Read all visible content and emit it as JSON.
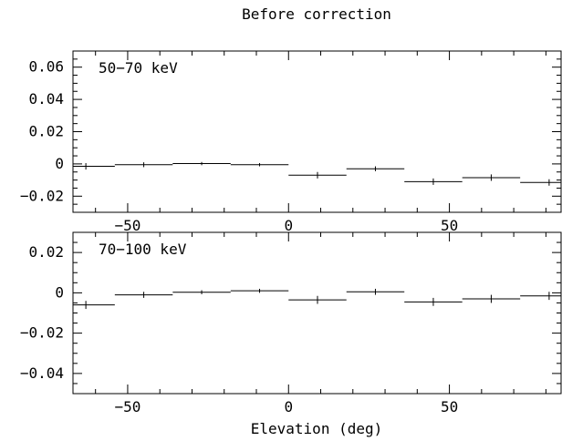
{
  "title": "Before correction",
  "xlabel": "Elevation (deg)",
  "chart_data": [
    {
      "type": "scatter",
      "annotation": "50−70 keV",
      "xlim": [
        -67,
        85
      ],
      "ylim": [
        -0.03,
        0.07
      ],
      "yticks": [
        -0.02,
        0,
        0.02,
        0.04,
        0.06
      ],
      "ytick_labels": [
        "−0.02",
        "0",
        "0.02",
        "0.04",
        "0.06"
      ],
      "xticks": [
        -50,
        0,
        50
      ],
      "xtick_labels": [
        "−50",
        "0",
        "50"
      ],
      "points": [
        {
          "x": -63,
          "xlo": -72,
          "xhi": -54,
          "y": -0.0015,
          "yerr": 0.002
        },
        {
          "x": -45,
          "xlo": -54,
          "xhi": -36,
          "y": -0.0005,
          "yerr": 0.0015
        },
        {
          "x": -27,
          "xlo": -36,
          "xhi": -18,
          "y": 0.0002,
          "yerr": 0.001
        },
        {
          "x": -9,
          "xlo": -18,
          "xhi": 0,
          "y": -0.0005,
          "yerr": 0.001
        },
        {
          "x": 9,
          "xlo": 0,
          "xhi": 18,
          "y": -0.007,
          "yerr": 0.002
        },
        {
          "x": 27,
          "xlo": 18,
          "xhi": 36,
          "y": -0.003,
          "yerr": 0.0015
        },
        {
          "x": 45,
          "xlo": 36,
          "xhi": 54,
          "y": -0.011,
          "yerr": 0.002
        },
        {
          "x": 63,
          "xlo": 54,
          "xhi": 72,
          "y": -0.0085,
          "yerr": 0.002
        },
        {
          "x": 81,
          "xlo": 72,
          "xhi": 90,
          "y": -0.0115,
          "yerr": 0.002
        }
      ]
    },
    {
      "type": "scatter",
      "annotation": "70−100 keV",
      "xlim": [
        -67,
        85
      ],
      "ylim": [
        -0.05,
        0.03
      ],
      "yticks": [
        -0.04,
        -0.02,
        0,
        0.02
      ],
      "ytick_labels": [
        "−0.04",
        "−0.02",
        "0",
        "0.02"
      ],
      "xticks": [
        -50,
        0,
        50
      ],
      "xtick_labels": [
        "−50",
        "0",
        "50"
      ],
      "points": [
        {
          "x": -63,
          "xlo": -72,
          "xhi": -54,
          "y": -0.006,
          "yerr": 0.002
        },
        {
          "x": -45,
          "xlo": -54,
          "xhi": -36,
          "y": -0.001,
          "yerr": 0.0015
        },
        {
          "x": -27,
          "xlo": -36,
          "xhi": -18,
          "y": 0.0003,
          "yerr": 0.001
        },
        {
          "x": -9,
          "xlo": -18,
          "xhi": 0,
          "y": 0.001,
          "yerr": 0.001
        },
        {
          "x": 9,
          "xlo": 0,
          "xhi": 18,
          "y": -0.0035,
          "yerr": 0.002
        },
        {
          "x": 27,
          "xlo": 18,
          "xhi": 36,
          "y": 0.0005,
          "yerr": 0.0015
        },
        {
          "x": 45,
          "xlo": 36,
          "xhi": 54,
          "y": -0.0045,
          "yerr": 0.002
        },
        {
          "x": 63,
          "xlo": 54,
          "xhi": 72,
          "y": -0.003,
          "yerr": 0.002
        },
        {
          "x": 81,
          "xlo": 72,
          "xhi": 90,
          "y": -0.0015,
          "yerr": 0.002
        }
      ]
    }
  ]
}
